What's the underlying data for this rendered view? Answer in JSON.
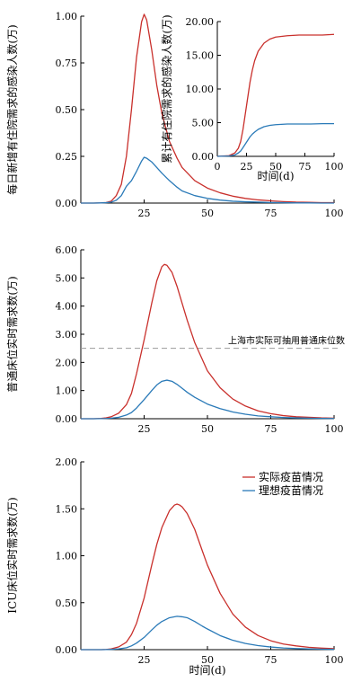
{
  "colors": {
    "actual": "#c9302c",
    "ideal": "#2a7ab8",
    "ref": "#9a9a9a",
    "axis": "#000000"
  },
  "chart_data": [
    {
      "id": "panel1",
      "type": "line",
      "xlabel": "",
      "ylabel": "每日新增有住院需求的感染人数(万)",
      "xlim": [
        0,
        100
      ],
      "ylim": [
        0,
        1.0
      ],
      "xticks": [
        "25",
        "50",
        "75",
        "100"
      ],
      "yticks": [
        "0.00",
        "0.25",
        "0.50",
        "0.75",
        "1.00"
      ],
      "series": [
        {
          "key": "actual",
          "x": [
            0,
            5,
            8,
            10,
            12,
            14,
            16,
            18,
            20,
            22,
            24,
            25,
            26,
            28,
            30,
            32,
            35,
            38,
            40,
            45,
            50,
            55,
            60,
            65,
            70,
            75,
            80,
            85,
            90,
            95,
            100
          ],
          "y": [
            0,
            0,
            0.001,
            0.003,
            0.01,
            0.04,
            0.1,
            0.25,
            0.5,
            0.78,
            0.97,
            1.01,
            0.98,
            0.82,
            0.63,
            0.48,
            0.33,
            0.24,
            0.19,
            0.12,
            0.08,
            0.055,
            0.037,
            0.025,
            0.017,
            0.012,
            0.008,
            0.005,
            0.004,
            0.002,
            0.002
          ]
        },
        {
          "key": "ideal",
          "x": [
            0,
            5,
            8,
            10,
            12,
            14,
            16,
            18,
            20,
            22,
            24,
            25,
            26,
            28,
            30,
            32,
            35,
            38,
            40,
            45,
            50,
            55,
            60,
            65,
            70,
            75,
            80,
            85,
            90,
            95,
            100
          ],
          "y": [
            0,
            0,
            0.001,
            0.002,
            0.005,
            0.015,
            0.04,
            0.09,
            0.12,
            0.17,
            0.225,
            0.245,
            0.24,
            0.22,
            0.19,
            0.16,
            0.12,
            0.085,
            0.065,
            0.04,
            0.025,
            0.016,
            0.01,
            0.007,
            0.005,
            0.003,
            0.002,
            0.001,
            0.001,
            0,
            0
          ]
        }
      ]
    },
    {
      "id": "inset",
      "type": "line",
      "xlabel": "时间(d)",
      "ylabel": "累计有住院需求的感染人数(万)",
      "xlim": [
        0,
        100
      ],
      "ylim": [
        0,
        20
      ],
      "xticks": [
        "0",
        "25",
        "50",
        "75",
        "100"
      ],
      "yticks": [
        "0.00",
        "5.00",
        "10.00",
        "15.00",
        "20.00"
      ],
      "series": [
        {
          "key": "actual",
          "x": [
            0,
            10,
            15,
            18,
            20,
            22,
            25,
            28,
            30,
            32,
            35,
            40,
            45,
            50,
            60,
            70,
            80,
            90,
            100
          ],
          "y": [
            0,
            0.1,
            0.5,
            1.2,
            2.2,
            4.0,
            7.5,
            11.0,
            12.8,
            14.2,
            15.6,
            16.8,
            17.4,
            17.7,
            17.9,
            18.0,
            18.0,
            18.0,
            18.1
          ]
        },
        {
          "key": "ideal",
          "x": [
            0,
            10,
            15,
            18,
            20,
            22,
            25,
            28,
            30,
            32,
            35,
            40,
            45,
            50,
            60,
            70,
            80,
            90,
            100
          ],
          "y": [
            0,
            0.05,
            0.2,
            0.5,
            0.8,
            1.3,
            2.1,
            2.9,
            3.3,
            3.6,
            4.0,
            4.4,
            4.6,
            4.7,
            4.8,
            4.8,
            4.8,
            4.85,
            4.85
          ]
        }
      ]
    },
    {
      "id": "panel2",
      "type": "line",
      "xlabel": "",
      "ylabel": "普通床位实时需求数(万)",
      "xlim": [
        0,
        100
      ],
      "ylim": [
        0,
        6.0
      ],
      "xticks": [
        "25",
        "50",
        "75",
        "100"
      ],
      "yticks": [
        "0.00",
        "1.00",
        "2.00",
        "3.00",
        "4.00",
        "5.00",
        "6.00"
      ],
      "reference_line": {
        "y": 2.5,
        "label": "上海市实际可抽用普通床位数"
      },
      "series": [
        {
          "key": "actual",
          "x": [
            0,
            5,
            8,
            10,
            12,
            15,
            18,
            20,
            22,
            25,
            28,
            30,
            32,
            33,
            34,
            36,
            38,
            40,
            42,
            45,
            50,
            55,
            60,
            65,
            70,
            75,
            80,
            85,
            90,
            95,
            100
          ],
          "y": [
            0,
            0,
            0.01,
            0.03,
            0.07,
            0.2,
            0.5,
            0.9,
            1.6,
            2.8,
            4.1,
            4.9,
            5.4,
            5.48,
            5.45,
            5.2,
            4.7,
            4.1,
            3.5,
            2.7,
            1.7,
            1.1,
            0.7,
            0.45,
            0.28,
            0.18,
            0.11,
            0.07,
            0.05,
            0.03,
            0.02
          ]
        },
        {
          "key": "ideal",
          "x": [
            0,
            5,
            8,
            10,
            12,
            15,
            18,
            20,
            22,
            25,
            28,
            30,
            32,
            34,
            36,
            38,
            40,
            42,
            45,
            50,
            55,
            60,
            65,
            70,
            75,
            80,
            85,
            90,
            95,
            100
          ],
          "y": [
            0,
            0,
            0.003,
            0.008,
            0.02,
            0.05,
            0.13,
            0.22,
            0.38,
            0.68,
            1.0,
            1.2,
            1.33,
            1.37,
            1.33,
            1.22,
            1.08,
            0.94,
            0.76,
            0.52,
            0.36,
            0.24,
            0.16,
            0.1,
            0.07,
            0.045,
            0.03,
            0.02,
            0.012,
            0.008
          ]
        }
      ]
    },
    {
      "id": "panel3",
      "type": "line",
      "xlabel": "时间(d)",
      "ylabel": "ICU床位实时需求数(万)",
      "xlim": [
        0,
        100
      ],
      "ylim": [
        0,
        2.0
      ],
      "xticks": [
        "25",
        "50",
        "75",
        "100"
      ],
      "yticks": [
        "0.00",
        "0.50",
        "1.00",
        "1.50",
        "2.00"
      ],
      "legend": [
        "实际疫苗情况",
        "理想疫苗情况"
      ],
      "legend_position": "top-right",
      "series": [
        {
          "key": "actual",
          "x": [
            0,
            5,
            8,
            10,
            12,
            15,
            18,
            20,
            22,
            25,
            28,
            30,
            32,
            35,
            37,
            38,
            39,
            40,
            42,
            45,
            48,
            50,
            55,
            60,
            65,
            70,
            75,
            80,
            85,
            90,
            95,
            100
          ],
          "y": [
            0,
            0,
            0,
            0.002,
            0.008,
            0.03,
            0.08,
            0.16,
            0.28,
            0.55,
            0.9,
            1.12,
            1.3,
            1.48,
            1.54,
            1.55,
            1.54,
            1.52,
            1.45,
            1.28,
            1.05,
            0.9,
            0.6,
            0.38,
            0.24,
            0.15,
            0.095,
            0.06,
            0.04,
            0.025,
            0.016,
            0.01
          ]
        },
        {
          "key": "ideal",
          "x": [
            0,
            5,
            8,
            10,
            12,
            15,
            18,
            20,
            22,
            25,
            28,
            30,
            32,
            35,
            38,
            40,
            42,
            45,
            48,
            50,
            55,
            60,
            65,
            70,
            75,
            80,
            85,
            90,
            95,
            100
          ],
          "y": [
            0,
            0,
            0,
            0.001,
            0.003,
            0.008,
            0.02,
            0.04,
            0.07,
            0.13,
            0.21,
            0.26,
            0.3,
            0.34,
            0.355,
            0.35,
            0.34,
            0.3,
            0.25,
            0.22,
            0.15,
            0.1,
            0.066,
            0.043,
            0.028,
            0.018,
            0.012,
            0.008,
            0.005,
            0.003
          ]
        }
      ]
    }
  ]
}
